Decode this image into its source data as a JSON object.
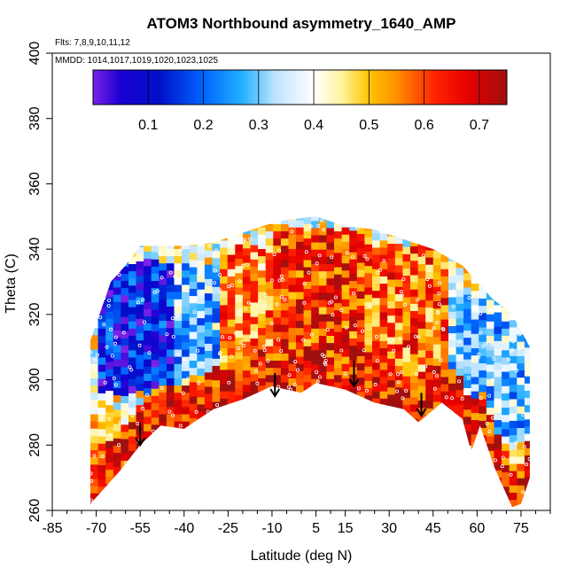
{
  "chart_data": {
    "type": "heatmap",
    "title": "ATOM3 Northbound asymmetry_1640_AMP",
    "subtitle_lines": [
      "Flts: 7,8,9,10,11,12",
      "MMDD: 1014,1017,1019,1020,1023,1025"
    ],
    "xlabel": "Latitude (deg N)",
    "ylabel": "Theta (C)",
    "xlim": [
      -85,
      85
    ],
    "ylim": [
      260,
      400
    ],
    "x_ticks": [
      -85,
      -70,
      -55,
      -40,
      -25,
      -10,
      5,
      15,
      30,
      45,
      60,
      75
    ],
    "x_minor_ticks": [
      -80,
      -75,
      -65,
      -60,
      -50,
      -45,
      -35,
      -30,
      -20,
      -15,
      -5,
      0,
      10,
      20,
      25,
      35,
      40,
      50,
      55,
      65,
      70,
      80,
      85
    ],
    "y_ticks": [
      260,
      280,
      300,
      320,
      340,
      360,
      380,
      400
    ],
    "colorbar": {
      "range": [
        0,
        0.75
      ],
      "ticks": [
        0.1,
        0.2,
        0.3,
        0.4,
        0.5,
        0.6,
        0.7
      ],
      "tick_labels": [
        "0.1",
        "0.2",
        "0.3",
        "0.4",
        "0.5",
        "0.6",
        "0.7"
      ],
      "stops": [
        {
          "v": 0.0,
          "color": "#7b22e6"
        },
        {
          "v": 0.05,
          "color": "#1a00d4"
        },
        {
          "v": 0.12,
          "color": "#0010c8"
        },
        {
          "v": 0.2,
          "color": "#0066ff"
        },
        {
          "v": 0.27,
          "color": "#22b0ff"
        },
        {
          "v": 0.33,
          "color": "#bfe4ff"
        },
        {
          "v": 0.4,
          "color": "#ffffff"
        },
        {
          "v": 0.45,
          "color": "#fff4a0"
        },
        {
          "v": 0.5,
          "color": "#ffc400"
        },
        {
          "v": 0.55,
          "color": "#ff9000"
        },
        {
          "v": 0.62,
          "color": "#ff2200"
        },
        {
          "v": 0.68,
          "color": "#e60000"
        },
        {
          "v": 0.75,
          "color": "#a01010"
        }
      ]
    },
    "coverage_top": [
      [
        -72,
        312
      ],
      [
        -65,
        330
      ],
      [
        -60,
        335
      ],
      [
        -55,
        341
      ],
      [
        -40,
        341
      ],
      [
        -30,
        342
      ],
      [
        -20,
        345
      ],
      [
        -10,
        348
      ],
      [
        -5,
        349
      ],
      [
        5,
        350
      ],
      [
        15,
        347
      ],
      [
        25,
        346
      ],
      [
        35,
        343
      ],
      [
        45,
        340
      ],
      [
        55,
        335
      ],
      [
        65,
        325
      ],
      [
        72,
        320
      ],
      [
        78,
        310
      ]
    ],
    "coverage_bottom": [
      [
        -72,
        262
      ],
      [
        -68,
        266
      ],
      [
        -62,
        272
      ],
      [
        -55,
        280
      ],
      [
        -48,
        286
      ],
      [
        -40,
        285
      ],
      [
        -30,
        291
      ],
      [
        -20,
        294
      ],
      [
        -10,
        298
      ],
      [
        0,
        296
      ],
      [
        5,
        299
      ],
      [
        15,
        297
      ],
      [
        25,
        293
      ],
      [
        35,
        291
      ],
      [
        40,
        287
      ],
      [
        48,
        293
      ],
      [
        55,
        288
      ],
      [
        58,
        278
      ],
      [
        61,
        286
      ],
      [
        66,
        273
      ],
      [
        72,
        261
      ],
      [
        75,
        262
      ],
      [
        78,
        270
      ]
    ],
    "strong_layer_thickness": 12,
    "arrows": [
      {
        "lat": -55,
        "theta_top": 287,
        "theta_tip": 280
      },
      {
        "lat": -9,
        "theta_top": 302,
        "theta_tip": 295
      },
      {
        "lat": 18,
        "theta_top": 306,
        "theta_tip": 298
      },
      {
        "lat": 41,
        "theta_top": 296,
        "theta_tip": 289
      }
    ],
    "field_regions": [
      {
        "lat": [
          -70,
          -45
        ],
        "theta": [
          295,
          335
        ],
        "value": 0.12
      },
      {
        "lat": [
          -45,
          -30
        ],
        "theta": [
          300,
          335
        ],
        "value": 0.3
      },
      {
        "lat": [
          -30,
          -10
        ],
        "theta": [
          305,
          340
        ],
        "value": 0.55
      },
      {
        "lat": [
          -10,
          20
        ],
        "theta": [
          300,
          345
        ],
        "value": 0.62
      },
      {
        "lat": [
          20,
          50
        ],
        "theta": [
          300,
          340
        ],
        "value": 0.58
      },
      {
        "lat": [
          50,
          78
        ],
        "theta": [
          280,
          325
        ],
        "value": 0.3
      },
      {
        "lat": [
          -72,
          -55
        ],
        "theta": [
          262,
          290
        ],
        "value": 0.5
      }
    ]
  }
}
